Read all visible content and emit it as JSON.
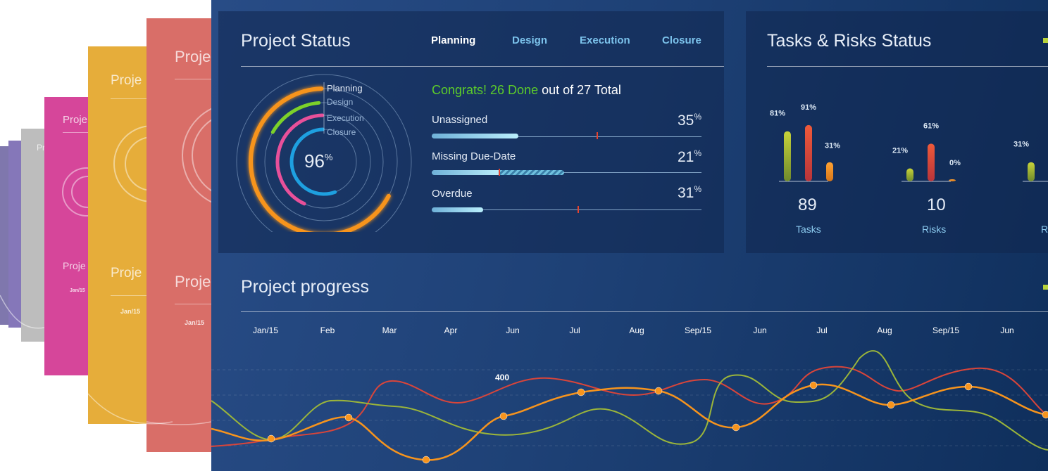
{
  "background_cards": {
    "labels": [
      "Proje",
      "Proje",
      "Proje",
      "Proje",
      "Proje",
      "Proje",
      "Proje"
    ],
    "mini_labels": [
      "Jan/15",
      "Jan/15",
      "Jan/15"
    ]
  },
  "project_status": {
    "title": "Project Status",
    "tabs": [
      {
        "label": "Planning",
        "active": true
      },
      {
        "label": "Design",
        "active": false
      },
      {
        "label": "Execution",
        "active": false
      },
      {
        "label": "Closure",
        "active": false
      }
    ],
    "gauge": {
      "value": "96",
      "unit": "%",
      "legend": [
        "Planning",
        "Design",
        "Execution",
        "Closure"
      ],
      "colors": {
        "planning": "#f7941d",
        "design": "#7cd12a",
        "execution": "#e8509a",
        "closure": "#1ea0e0"
      }
    },
    "summary": {
      "congrats": "Congrats! 26 Done",
      "middle": "out of",
      "total": "27 Total"
    },
    "metrics": [
      {
        "name": "Unassigned",
        "value": "35",
        "unit": "%",
        "fill": 0.32,
        "marker": 0.61
      },
      {
        "name": "Missing Due-Date",
        "value": "21",
        "unit": "%",
        "fill": 0.25,
        "hatch_to": 0.49
      },
      {
        "name": "Overdue",
        "value": "31",
        "unit": "%",
        "fill": 0.19,
        "marker": 0.54
      }
    ]
  },
  "tasks_risks": {
    "title": "Tasks & Risks Status",
    "groups": [
      {
        "count": "89",
        "label": "Tasks",
        "bars": [
          {
            "label": "81%",
            "value": 81,
            "color": "olive"
          },
          {
            "label": "91%",
            "value": 91,
            "color": "red"
          },
          {
            "label": "31%",
            "value": 31,
            "color": "orange"
          }
        ]
      },
      {
        "count": "10",
        "label": "Risks",
        "bars": [
          {
            "label": "21%",
            "value": 21,
            "color": "olive"
          },
          {
            "label": "61%",
            "value": 61,
            "color": "red"
          },
          {
            "label": "0%",
            "value": 0,
            "color": "orange"
          }
        ]
      },
      {
        "count": "",
        "label": "R",
        "bars": [
          {
            "label": "31%",
            "value": 31,
            "color": "olive"
          }
        ]
      }
    ]
  },
  "progress": {
    "title": "Project progress",
    "months": [
      "Jan/15",
      "Feb",
      "Mar",
      "Apr",
      "Jun",
      "Jul",
      "Aug",
      "Sep/15",
      "Jun",
      "Jul",
      "Aug",
      "Sep/15",
      "Jun"
    ],
    "point_label": "400"
  },
  "colors": {
    "accent_orange": "#f7941d",
    "accent_red": "#d9453a",
    "accent_olive": "#9bb53a",
    "panel_text": "#e6edf7",
    "tab_blue": "#7cc3ec"
  }
}
